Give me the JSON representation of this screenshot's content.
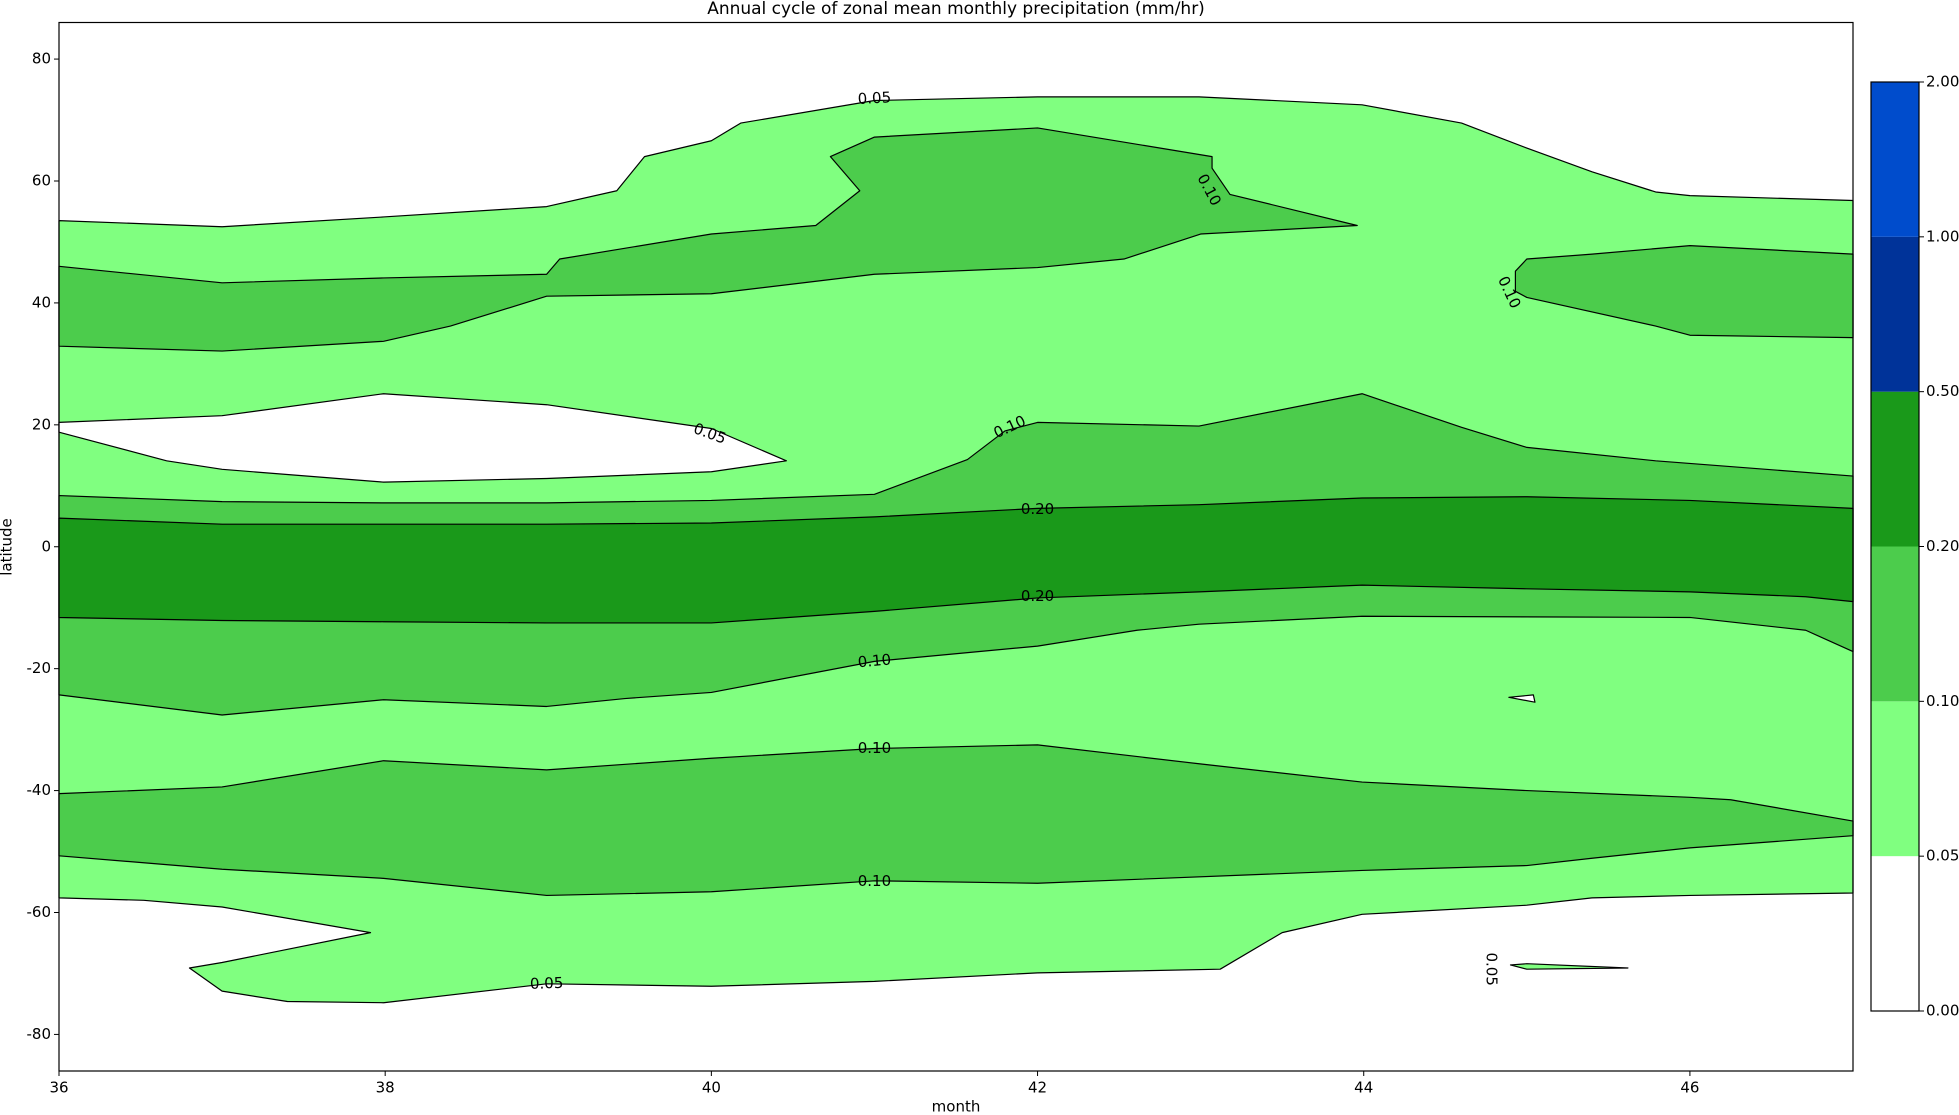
{
  "chart_data": {
    "type": "contourf",
    "title": "Annual cycle of zonal mean monthly precipitation (mm/hr)",
    "x_label": "month",
    "y_label": "latitude",
    "xlim": [
      36,
      47
    ],
    "ylim": [
      -86,
      86
    ],
    "xticks": [
      36,
      38,
      40,
      42,
      44,
      46
    ],
    "yticks": [
      -80,
      -60,
      -40,
      -20,
      0,
      20,
      40,
      60,
      80
    ],
    "colorbar": {
      "levels": [
        {
          "value": 0,
          "label": "0.00"
        },
        {
          "value": 0.05,
          "label": "0.05"
        },
        {
          "value": 0.1,
          "label": "0.10"
        },
        {
          "value": 0.2,
          "label": "0.20"
        },
        {
          "value": 0.5,
          "label": "0.50"
        },
        {
          "value": 1,
          "label": "1.00"
        },
        {
          "value": 2,
          "label": "2.00"
        }
      ],
      "colors": [
        "#ffffff",
        "#80ff80",
        "#4ccc4c",
        "#1a991a",
        "#003399",
        "#004ccc"
      ]
    },
    "regions": [
      {
        "level": 0.05,
        "x": [
          36,
          37,
          37.99,
          38.99,
          39.42,
          39.59,
          40,
          40.18,
          41,
          42,
          42.99,
          43.99,
          44.6,
          45,
          45.4,
          45.79,
          46,
          47,
          47,
          46,
          45.4,
          45,
          43.99,
          43.5,
          43.12,
          42,
          41,
          40,
          38.99,
          37.99,
          37.4,
          37,
          36.8,
          37,
          37.91,
          37,
          36.52,
          36
        ],
        "y": [
          53.5,
          52.5,
          54.1,
          55.8,
          58.4,
          64,
          66.6,
          69.5,
          73.2,
          73.8,
          73.8,
          72.5,
          69.5,
          65.4,
          61.5,
          58.2,
          57.6,
          56.8,
          -56.8,
          -57.2,
          -57.6,
          -58.8,
          -60.3,
          -63.3,
          -69.3,
          -69.9,
          -71.3,
          -72.1,
          -71.7,
          -74.8,
          -74.6,
          -72.9,
          -69.1,
          -68.2,
          -63.3,
          -59.1,
          -58,
          -57.6
        ]
      },
      {
        "level": 0.05,
        "x": [
          44.9,
          45,
          45.62,
          45
        ],
        "y": [
          -68.6,
          -68.4,
          -69.1,
          -69.3
        ]
      },
      {
        "level": 0,
        "x": [
          36,
          37,
          37.99,
          38.99,
          40,
          40.46,
          40,
          38.99,
          37.99,
          37,
          36.66,
          36
        ],
        "y": [
          20.4,
          21.5,
          25.1,
          23.3,
          19.4,
          14.1,
          12.3,
          11.2,
          10.6,
          12.7,
          14.1,
          18.8
        ]
      },
      {
        "level": 0,
        "x": [
          44.89,
          45.04,
          45.05
        ],
        "y": [
          -24.7,
          -24.3,
          -25.5
        ]
      },
      {
        "level": 0.1,
        "x": [
          36,
          37,
          37.99,
          38.99,
          39.07,
          40,
          40.64,
          40.91,
          40.73,
          41,
          42,
          43.07,
          43.07,
          43.18,
          43.96,
          43,
          42.53,
          42,
          41,
          40,
          38.99,
          38.4,
          37.99,
          37,
          36
        ],
        "y": [
          46,
          43.3,
          44.1,
          44.7,
          47.2,
          51.3,
          52.7,
          58.4,
          64,
          67.2,
          68.7,
          64,
          62.1,
          57.8,
          52.7,
          51.3,
          47.2,
          45.8,
          44.7,
          41.5,
          41.1,
          36.2,
          33.7,
          32.1,
          32.9
        ]
      },
      {
        "level": 0.1,
        "x": [
          44.93,
          45,
          45.4,
          46,
          47,
          47,
          46,
          45.79,
          45,
          44.93
        ],
        "y": [
          45.2,
          47.2,
          48,
          49.4,
          48,
          34.3,
          34.7,
          36.2,
          40.9,
          41.9
        ]
      },
      {
        "level": 0.1,
        "x": [
          36,
          37,
          37.99,
          38.99,
          40,
          41,
          41.57,
          41.8,
          42,
          42.99,
          43.99,
          44.6,
          45,
          45.79,
          47,
          47,
          46.71,
          46,
          43.99,
          42.99,
          42.61,
          42,
          41,
          40,
          39.47,
          38.99,
          37.99,
          37,
          36
        ],
        "y": [
          8.4,
          7.4,
          7.2,
          7.2,
          7.6,
          8.6,
          14.3,
          19,
          20.4,
          19.8,
          25.1,
          19.6,
          16.3,
          14.1,
          11.6,
          -17.2,
          -13.7,
          -11.6,
          -11.4,
          -12.7,
          -13.7,
          -16.3,
          -18.8,
          -23.9,
          -24.9,
          -26.2,
          -25.1,
          -27.6,
          -24.3
        ]
      },
      {
        "level": 0.1,
        "x": [
          36,
          37,
          37.99,
          38.99,
          40,
          41,
          42,
          42.99,
          43.99,
          45,
          46,
          46.25,
          47,
          47,
          46,
          45.4,
          45,
          43.99,
          42,
          41,
          40,
          38.99,
          37.99,
          37,
          36
        ],
        "y": [
          -40.5,
          -39.4,
          -35.1,
          -36.6,
          -34.7,
          -33.1,
          -32.5,
          -35.6,
          -38.6,
          -40,
          -41.1,
          -41.5,
          -45,
          -47.4,
          -49.4,
          -51.1,
          -52.3,
          -53.1,
          -55.2,
          -54.8,
          -56.6,
          -57.2,
          -54.4,
          -52.9,
          -50.7
        ]
      },
      {
        "level": 0.2,
        "x": [
          36,
          37,
          37.99,
          38.99,
          40,
          41,
          42,
          42.99,
          43.99,
          45,
          46,
          47,
          47,
          46.71,
          46,
          45,
          43.99,
          42.99,
          42,
          41,
          40,
          38.99,
          37.99,
          37,
          36
        ],
        "y": [
          4.7,
          3.7,
          3.7,
          3.7,
          3.9,
          4.9,
          6.3,
          6.9,
          8,
          8.2,
          7.6,
          6.3,
          -9,
          -8.2,
          -7.4,
          -6.9,
          -6.3,
          -7.4,
          -8.4,
          -10.6,
          -12.5,
          -12.5,
          -12.3,
          -12.1,
          -11.6
        ]
      }
    ],
    "contour_labels": [
      {
        "value": 0.05,
        "label": "0.05",
        "x": 41,
        "y": 73.5
      },
      {
        "value": 0.1,
        "label": "0.10",
        "x": 43.05,
        "y": 58.5
      },
      {
        "value": 0.1,
        "label": "0.10",
        "x": 44.89,
        "y": 41.7
      },
      {
        "value": 0.05,
        "label": "0.05",
        "x": 39.99,
        "y": 18.5
      },
      {
        "value": 0.1,
        "label": "0.10",
        "x": 41.83,
        "y": 19.6
      },
      {
        "value": 0.2,
        "label": "0.20",
        "x": 42,
        "y": 6.1
      },
      {
        "value": 0.2,
        "label": "0.20",
        "x": 42,
        "y": -8.2
      },
      {
        "value": 0.1,
        "label": "0.10",
        "x": 41,
        "y": -18.8
      },
      {
        "value": 0.1,
        "label": "0.10",
        "x": 41,
        "y": -33.1
      },
      {
        "value": 0.1,
        "label": "0.10",
        "x": 41,
        "y": -54.9
      },
      {
        "value": 0.05,
        "label": "0.05",
        "x": 38.99,
        "y": -71.7
      },
      {
        "value": 0.05,
        "label": "0.05",
        "x": 44.78,
        "y": -69.3
      }
    ]
  }
}
